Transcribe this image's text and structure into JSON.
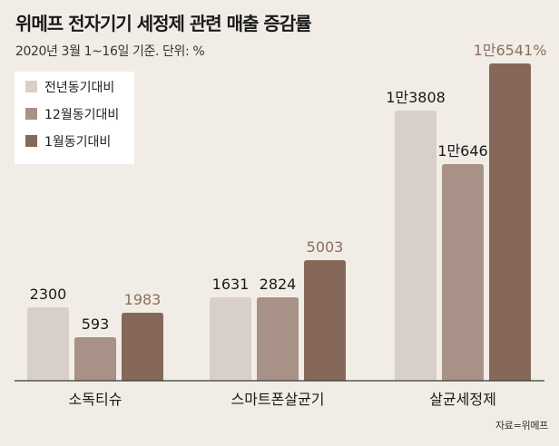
{
  "header": {
    "title": "위메프 전자기기 세정제 관련 매출 증감률",
    "subtitle": "2020년 3월 1~16일 기준. 단위: %"
  },
  "footer": {
    "source": "자료=위메프"
  },
  "colors": {
    "series": [
      "#d9cfc9",
      "#a89187",
      "#85685a"
    ],
    "highlight_label": "#8d6e5e",
    "label": "#1a1a1a"
  },
  "chart_data": {
    "type": "bar",
    "title": "위메프 전자기기 세정제 관련 매출 증감률",
    "subtitle": "2020년 3월 1~16일 기준. 단위: %",
    "xlabel": "",
    "ylabel": "",
    "unit": "%",
    "categories": [
      "소독티슈",
      "스마트폰살균기",
      "살균세정제"
    ],
    "series": [
      {
        "name": "전년동기대비",
        "values": [
          2300,
          1631,
          13808
        ],
        "labels": [
          "2300",
          "1631",
          "1만3808"
        ]
      },
      {
        "name": "12월동기대비",
        "values": [
          593,
          2824,
          10646
        ],
        "labels": [
          "593",
          "2824",
          "1만646"
        ]
      },
      {
        "name": "1월동기대비",
        "values": [
          1983,
          5003,
          16541
        ],
        "labels": [
          "1983",
          "5003",
          "1만6541%"
        ]
      }
    ],
    "legend_position": "top-left",
    "grid": false,
    "axis_scale": "broken"
  }
}
